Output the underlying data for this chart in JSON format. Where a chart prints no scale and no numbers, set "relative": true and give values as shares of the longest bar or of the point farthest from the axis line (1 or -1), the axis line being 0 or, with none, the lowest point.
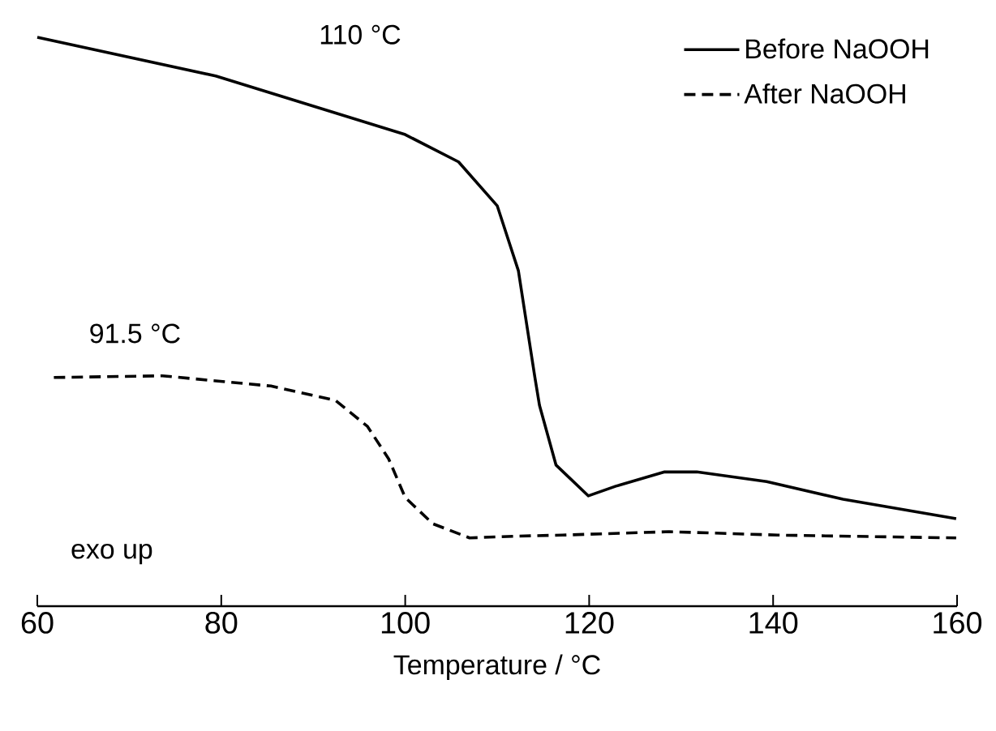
{
  "chart_data": {
    "type": "line",
    "relative": true,
    "xlabel": "Temperature / °C",
    "xlim": [
      60,
      160
    ],
    "xticks": [
      60,
      80,
      100,
      120,
      140,
      160
    ],
    "legend": "top right",
    "grid": false,
    "annotations": [
      "110 °C",
      "91.5 °C",
      "exo up"
    ],
    "series": [
      {
        "name": "Before NaOOH",
        "color": "#000000",
        "line_style": "solid",
        "x": [
          60,
          79.4,
          100,
          105.8,
          110,
          112.3,
          114.1,
          114.6,
          116.4,
          119.9,
          122.9,
          128.2,
          131.7,
          139.3,
          147.6,
          159.9
        ],
        "values": [
          1.0,
          0.932,
          0.829,
          0.781,
          0.704,
          0.59,
          0.402,
          0.353,
          0.248,
          0.194,
          0.211,
          0.236,
          0.236,
          0.219,
          0.188,
          0.154
        ]
      },
      {
        "name": "After NaOOH",
        "color": "#000000",
        "line_style": "dashed",
        "x": [
          61.8,
          73.6,
          85.4,
          92.4,
          95.9,
          98.2,
          100,
          103,
          107,
          111.8,
          117.1,
          128.7,
          140.5,
          159.9
        ],
        "values": [
          0.402,
          0.405,
          0.387,
          0.362,
          0.316,
          0.259,
          0.191,
          0.145,
          0.12,
          0.123,
          0.125,
          0.131,
          0.125,
          0.12
        ]
      }
    ]
  }
}
